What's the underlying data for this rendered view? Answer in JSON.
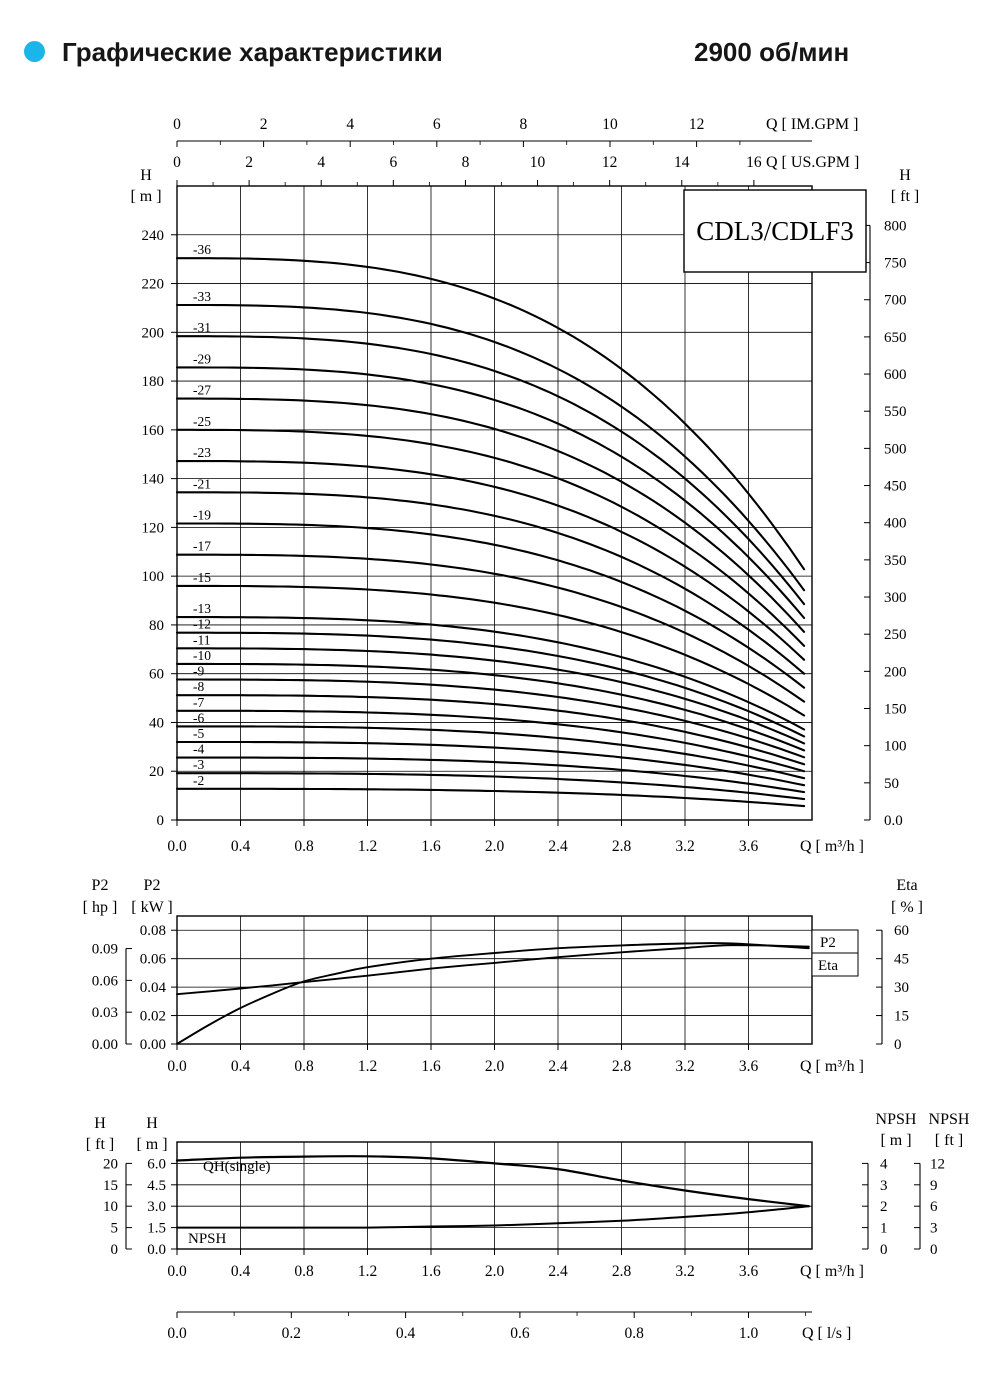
{
  "header": {
    "title": "Графические характеристики",
    "rpm": "2900 об/мин",
    "bullet_color": "#1cb5ea"
  },
  "model_box": {
    "label": "CDL3/CDLF3"
  },
  "chart_data": [
    {
      "type": "line",
      "id": "qh_multistage",
      "title": "CDL3/CDLF3",
      "axes": {
        "q_m3h": {
          "label": "Q [ m³/h ]",
          "min": 0,
          "max": 4.0,
          "ticks": [
            "0.0",
            "0.4",
            "0.8",
            "1.2",
            "1.6",
            "2.0",
            "2.4",
            "2.8",
            "3.2",
            "3.6"
          ]
        },
        "h_m": {
          "label_line1": "H",
          "label_line2": "[ m ]",
          "min": 0,
          "max": 260,
          "ticks": [
            "0",
            "20",
            "40",
            "60",
            "80",
            "100",
            "120",
            "140",
            "160",
            "180",
            "200",
            "220",
            "240"
          ]
        },
        "h_ft": {
          "label_line1": "H",
          "label_line2": "[ ft ]",
          "m_per_ft": 0.3048,
          "ticks": [
            "0.0",
            "50",
            "100",
            "150",
            "200",
            "250",
            "300",
            "350",
            "400",
            "450",
            "500",
            "550",
            "600",
            "650",
            "700",
            "750",
            "800"
          ]
        },
        "q_imgpm": {
          "label": "Q [ IM.GPM ]",
          "m3h_per_unit": 0.27276,
          "ticks": [
            "0",
            "2",
            "4",
            "6",
            "8",
            "10",
            "12"
          ]
        },
        "q_usgpm": {
          "label": "Q [ US.GPM ]",
          "m3h_per_unit": 0.22712,
          "ticks": [
            "0",
            "2",
            "4",
            "6",
            "8",
            "10",
            "12",
            "14",
            "16"
          ]
        }
      },
      "curves": {
        "stages": [
          36,
          33,
          31,
          29,
          27,
          25,
          23,
          21,
          19,
          17,
          15,
          13,
          12,
          11,
          10,
          9,
          8,
          7,
          6,
          5,
          4,
          3,
          2
        ],
        "labels": [
          "-36",
          "-33",
          "-31",
          "-29",
          "-27",
          "-25",
          "-23",
          "-21",
          "-19",
          "-17",
          "-15",
          "-13",
          "-12",
          "-11",
          "-10",
          "-9",
          "-8",
          "-7",
          "-6",
          "-5",
          "-4",
          "-3",
          "-2"
        ],
        "head_per_stage_at_zero_flow_m": 6.4,
        "cubic_droop_coeff": 0.0575,
        "q_start": 0,
        "q_end": 3.98,
        "head_at_zero_flow_m": [
          230.4,
          211.2,
          198.4,
          185.6,
          172.8,
          160.0,
          147.2,
          134.4,
          121.6,
          108.8,
          96.0,
          83.2,
          76.8,
          70.4,
          64.0,
          57.6,
          51.2,
          44.8,
          38.4,
          32.0,
          25.6,
          19.2,
          12.8
        ],
        "head_at_max_flow_m": [
          99.9,
          91.6,
          86.0,
          80.5,
          74.9,
          69.4,
          63.8,
          58.3,
          52.7,
          47.2,
          41.6,
          36.1,
          33.3,
          30.5,
          27.8,
          25.0,
          22.2,
          19.4,
          16.7,
          13.9,
          11.1,
          8.3,
          5.6
        ]
      }
    },
    {
      "type": "line",
      "id": "power_efficiency",
      "axes": {
        "p2_hp": {
          "label_line1": "P2",
          "label_line2": "[ hp ]",
          "kw_per_hp": 0.7457,
          "ticks": [
            "0.00",
            "0.03",
            "0.06",
            "0.09"
          ]
        },
        "p2_kw": {
          "label_line1": "P2",
          "label_line2": "[ kW ]",
          "min": 0,
          "max": 0.09,
          "ticks": [
            "0.00",
            "0.02",
            "0.04",
            "0.06",
            "0.08"
          ]
        },
        "eta": {
          "label_line1": "Eta",
          "label_line2": "[ % ]",
          "min": 0,
          "max": 67.5,
          "ticks": [
            "0",
            "15",
            "30",
            "45",
            "60"
          ]
        },
        "q_m3h": {
          "label": "Q [ m³/h ]",
          "ticks": [
            "0.0",
            "0.4",
            "0.8",
            "1.2",
            "1.6",
            "2.0",
            "2.4",
            "2.8",
            "3.2",
            "3.6"
          ]
        }
      },
      "series": [
        {
          "name": "P2",
          "axis": "p2_kw",
          "x": [
            0,
            0.2,
            0.4,
            0.6,
            0.8,
            1.0,
            1.2,
            1.6,
            2.0,
            2.4,
            2.8,
            3.2,
            3.5,
            3.98
          ],
          "y": [
            0.035,
            0.037,
            0.039,
            0.0412,
            0.0435,
            0.0458,
            0.048,
            0.053,
            0.057,
            0.061,
            0.0645,
            0.0675,
            0.0695,
            0.0685
          ]
        },
        {
          "name": "Eta",
          "axis": "eta",
          "x": [
            0,
            0.2,
            0.4,
            0.6,
            0.8,
            1.0,
            1.2,
            1.6,
            2.0,
            2.4,
            2.8,
            3.2,
            3.5,
            3.98
          ],
          "y": [
            0,
            10,
            19,
            26.5,
            33,
            37,
            40.5,
            45,
            48,
            50.5,
            52,
            53,
            53,
            50.5
          ]
        }
      ]
    },
    {
      "type": "line",
      "id": "qh_single_npsh",
      "axes": {
        "h_ft": {
          "label_line1": "H",
          "label_line2": "[ ft ]",
          "ticks": [
            "0",
            "5",
            "10",
            "15",
            "20"
          ]
        },
        "h_m": {
          "label_line1": "H",
          "label_line2": "[ m ]",
          "min": 0,
          "max": 7.5,
          "ticks": [
            "0.0",
            "1.5",
            "3.0",
            "4.5",
            "6.0"
          ]
        },
        "npsh_m": {
          "label_line1": "NPSH",
          "label_line2": "[ m ]",
          "min": 0,
          "max": 5,
          "ticks": [
            "0",
            "1",
            "2",
            "3",
            "4"
          ]
        },
        "npsh_ft": {
          "label_line1": "NPSH",
          "label_line2": "[ ft ]",
          "ticks": [
            "0",
            "3",
            "6",
            "9",
            "12"
          ]
        },
        "q_m3h": {
          "label": "Q [ m³/h ]",
          "ticks": [
            "0.0",
            "0.4",
            "0.8",
            "1.2",
            "1.6",
            "2.0",
            "2.4",
            "2.8",
            "3.2",
            "3.6"
          ]
        },
        "q_ls": {
          "label": "Q [ l/s ]",
          "m3h_per_unit": 3.6,
          "ticks": [
            "0.0",
            "0.2",
            "0.4",
            "0.6",
            "0.8",
            "1.0"
          ]
        }
      },
      "series": [
        {
          "name": "QH(single)",
          "axis": "h_m",
          "x": [
            0,
            0.4,
            0.8,
            1.2,
            1.6,
            2.0,
            2.4,
            2.8,
            3.2,
            3.6,
            3.98
          ],
          "y": [
            6.2,
            6.4,
            6.48,
            6.5,
            6.35,
            6.0,
            5.6,
            4.8,
            4.1,
            3.5,
            3.0
          ]
        },
        {
          "name": "NPSH",
          "axis": "npsh_m",
          "x": [
            0,
            0.4,
            0.8,
            1.2,
            1.6,
            2.0,
            2.4,
            2.8,
            3.2,
            3.6,
            3.98
          ],
          "y": [
            1.0,
            1.0,
            1.0,
            1.0,
            1.05,
            1.1,
            1.2,
            1.32,
            1.5,
            1.72,
            2.0
          ]
        }
      ],
      "inline_labels": [
        {
          "text": "QH(single)"
        },
        {
          "text": "NPSH"
        }
      ]
    }
  ]
}
